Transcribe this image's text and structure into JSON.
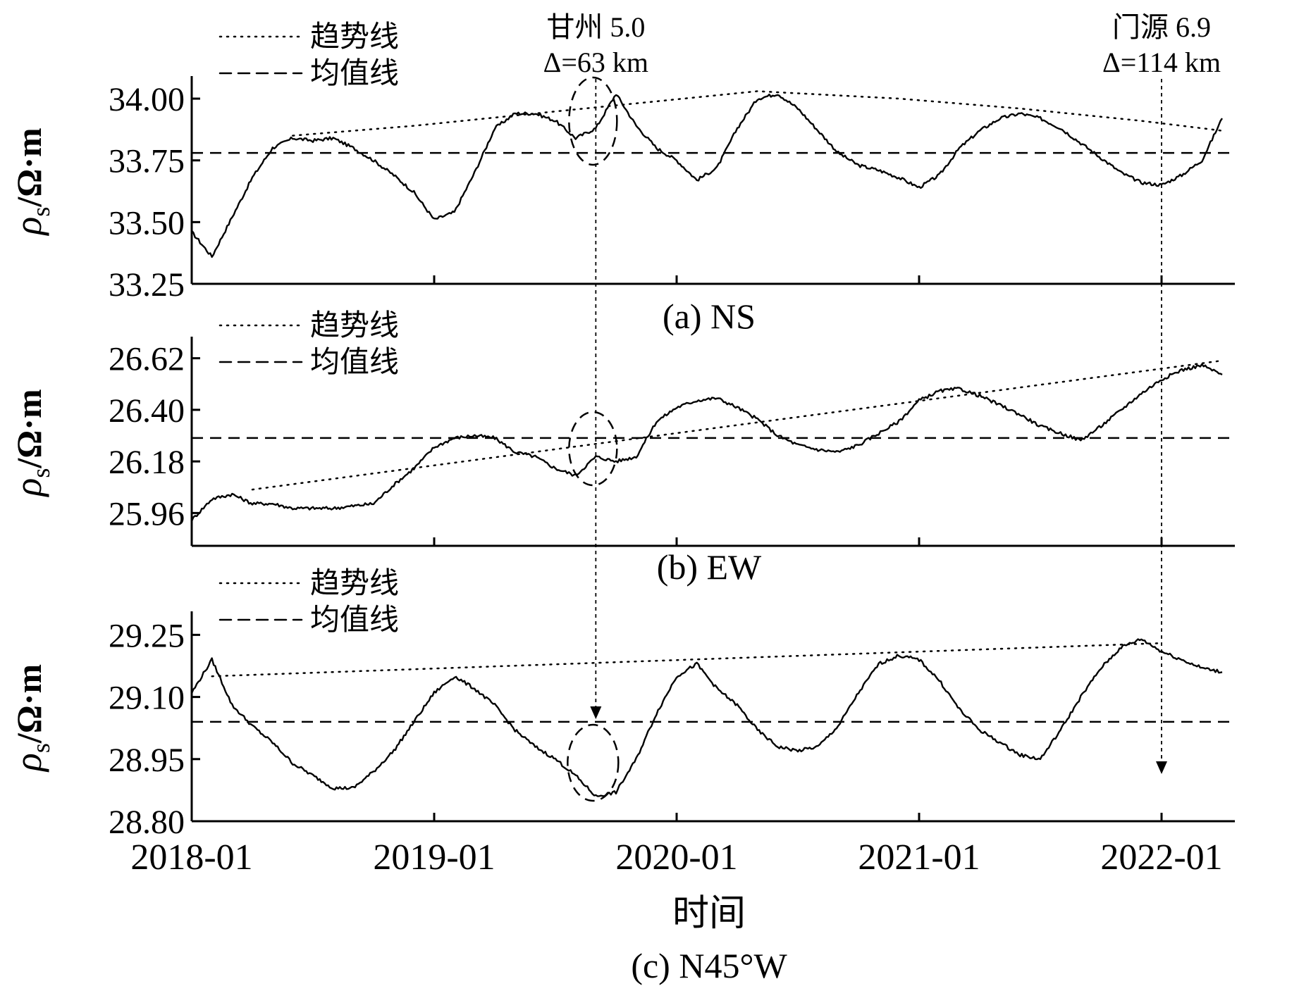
{
  "chart_data": [
    {
      "type": "line",
      "panel_label": "(a) NS",
      "ylabel_main": "ρ",
      "ylabel_sub": "s",
      "ylabel_unit": "/Ω·m",
      "ylim": [
        33.25,
        34.08
      ],
      "yticks": [
        "33.25",
        "33.50",
        "33.75",
        "34.00"
      ],
      "mean": 33.78,
      "legend": [
        {
          "label": "趋势线",
          "style": "dotted"
        },
        {
          "label": "均值线",
          "style": "dashed"
        }
      ],
      "trend": {
        "x": [
          "2018-06",
          "2018-12",
          "2019-06",
          "2020-05",
          "2020-12",
          "2021-06",
          "2021-12",
          "2022-04"
        ],
        "values": [
          33.85,
          33.89,
          33.94,
          34.03,
          34.0,
          33.96,
          33.91,
          33.87
        ]
      },
      "series": [
        {
          "x": [
            "2018-01",
            "2018-02",
            "2018-03",
            "2018-04",
            "2018-05",
            "2018-06",
            "2018-07",
            "2018-08",
            "2018-09",
            "2018-10",
            "2018-11",
            "2018-12",
            "2019-01",
            "2019-02",
            "2019-03",
            "2019-04",
            "2019-05",
            "2019-06",
            "2019-07",
            "2019-08",
            "2019-09",
            "2019-10",
            "2019-11",
            "2019-12",
            "2020-01",
            "2020-02",
            "2020-03",
            "2020-04",
            "2020-05",
            "2020-06",
            "2020-07",
            "2020-08",
            "2020-09",
            "2020-10",
            "2020-11",
            "2020-12",
            "2021-01",
            "2021-02",
            "2021-03",
            "2021-04",
            "2021-05",
            "2021-06",
            "2021-07",
            "2021-08",
            "2021-09",
            "2021-10",
            "2021-11",
            "2021-12",
            "2022-01",
            "2022-02",
            "2022-03",
            "2022-04"
          ],
          "values": [
            33.46,
            33.36,
            33.52,
            33.68,
            33.8,
            33.84,
            33.83,
            33.84,
            33.8,
            33.75,
            33.69,
            33.62,
            33.51,
            33.54,
            33.7,
            33.88,
            33.94,
            33.94,
            33.91,
            33.84,
            33.88,
            34.02,
            33.89,
            33.8,
            33.75,
            33.67,
            33.72,
            33.88,
            34.0,
            34.02,
            33.96,
            33.87,
            33.78,
            33.73,
            33.71,
            33.68,
            33.64,
            33.69,
            33.8,
            33.87,
            33.92,
            33.94,
            33.92,
            33.88,
            33.82,
            33.76,
            33.7,
            33.66,
            33.65,
            33.69,
            33.75,
            33.92
          ]
        }
      ],
      "annotations": [
        {
          "label": "甘州 5.0",
          "distance_label": "Δ=63 km",
          "x": "2019-09"
        },
        {
          "label": "门源 6.9",
          "distance_label": "Δ=114 km",
          "x": "2022-01"
        }
      ]
    },
    {
      "type": "line",
      "panel_label": "(b) EW",
      "ylabel_main": "ρ",
      "ylabel_sub": "s",
      "ylabel_unit": "/Ω·m",
      "ylim": [
        25.82,
        26.7
      ],
      "yticks": [
        "25.96",
        "26.18",
        "26.40",
        "26.62"
      ],
      "mean": 26.28,
      "legend": [
        {
          "label": "趋势线",
          "style": "dotted"
        },
        {
          "label": "均值线",
          "style": "dashed"
        }
      ],
      "trend": {
        "x": [
          "2018-04",
          "2022-04"
        ],
        "values": [
          26.06,
          26.61
        ]
      },
      "series": [
        {
          "x": [
            "2018-01",
            "2018-02",
            "2018-03",
            "2018-04",
            "2018-05",
            "2018-06",
            "2018-07",
            "2018-08",
            "2018-09",
            "2018-10",
            "2018-11",
            "2018-12",
            "2019-01",
            "2019-02",
            "2019-03",
            "2019-04",
            "2019-05",
            "2019-06",
            "2019-07",
            "2019-08",
            "2019-09",
            "2019-10",
            "2019-11",
            "2019-12",
            "2020-01",
            "2020-02",
            "2020-03",
            "2020-04",
            "2020-05",
            "2020-06",
            "2020-07",
            "2020-08",
            "2020-09",
            "2020-10",
            "2020-11",
            "2020-12",
            "2021-01",
            "2021-02",
            "2021-03",
            "2021-04",
            "2021-05",
            "2021-06",
            "2021-07",
            "2021-08",
            "2021-09",
            "2021-10",
            "2021-11",
            "2021-12",
            "2022-01",
            "2022-02",
            "2022-03",
            "2022-04"
          ],
          "values": [
            25.93,
            26.02,
            26.04,
            26.0,
            26.0,
            25.98,
            25.98,
            25.98,
            25.99,
            26.0,
            26.08,
            26.15,
            26.24,
            26.28,
            26.29,
            26.28,
            26.22,
            26.2,
            26.15,
            26.12,
            26.2,
            26.18,
            26.2,
            26.35,
            26.41,
            26.44,
            26.45,
            26.41,
            26.36,
            26.29,
            26.25,
            26.23,
            26.22,
            26.25,
            26.3,
            26.35,
            26.44,
            26.48,
            26.49,
            26.46,
            26.42,
            26.38,
            26.33,
            26.3,
            26.27,
            26.33,
            26.4,
            26.47,
            26.53,
            26.57,
            26.59,
            26.55
          ]
        }
      ]
    },
    {
      "type": "line",
      "panel_label": "(c) N45°W",
      "ylabel_main": "ρ",
      "ylabel_sub": "s",
      "ylabel_unit": "/Ω·m",
      "ylim": [
        28.8,
        29.3
      ],
      "yticks": [
        "28.80",
        "28.95",
        "29.10",
        "29.25"
      ],
      "mean": 29.04,
      "legend": [
        {
          "label": "趋势线",
          "style": "dotted"
        },
        {
          "label": "均值线",
          "style": "dashed"
        }
      ],
      "trend": {
        "x": [
          "2018-02",
          "2022-01"
        ],
        "values": [
          29.15,
          29.23
        ]
      },
      "series": [
        {
          "x": [
            "2018-01",
            "2018-02",
            "2018-03",
            "2018-04",
            "2018-05",
            "2018-06",
            "2018-07",
            "2018-08",
            "2018-09",
            "2018-10",
            "2018-11",
            "2018-12",
            "2019-01",
            "2019-02",
            "2019-03",
            "2019-04",
            "2019-05",
            "2019-06",
            "2019-07",
            "2019-08",
            "2019-09",
            "2019-10",
            "2019-11",
            "2019-12",
            "2020-01",
            "2020-02",
            "2020-03",
            "2020-04",
            "2020-05",
            "2020-06",
            "2020-07",
            "2020-08",
            "2020-09",
            "2020-10",
            "2020-11",
            "2020-12",
            "2021-01",
            "2021-02",
            "2021-03",
            "2021-04",
            "2021-05",
            "2021-06",
            "2021-07",
            "2021-08",
            "2021-09",
            "2021-10",
            "2021-11",
            "2021-12",
            "2022-01",
            "2022-02",
            "2022-03",
            "2022-04"
          ],
          "values": [
            29.11,
            29.19,
            29.08,
            29.03,
            28.99,
            28.94,
            28.91,
            28.88,
            28.88,
            28.92,
            28.97,
            29.04,
            29.11,
            29.15,
            29.12,
            29.08,
            29.02,
            28.98,
            28.95,
            28.91,
            28.86,
            28.87,
            28.95,
            29.06,
            29.15,
            29.18,
            29.12,
            29.08,
            29.02,
            28.98,
            28.97,
            28.98,
            29.03,
            29.11,
            29.18,
            29.2,
            29.19,
            29.14,
            29.07,
            29.02,
            28.99,
            28.96,
            28.95,
            29.02,
            29.1,
            29.17,
            29.22,
            29.24,
            29.21,
            29.19,
            29.17,
            29.16
          ]
        }
      ]
    }
  ],
  "x_axis": {
    "label": "时间",
    "ticks": [
      "2018-01",
      "2019-01",
      "2020-01",
      "2021-01",
      "2022-01"
    ]
  }
}
